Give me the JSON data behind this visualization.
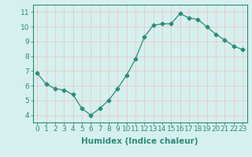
{
  "xlabel": "Humidex (Indice chaleur)",
  "x": [
    0,
    1,
    2,
    3,
    4,
    5,
    6,
    7,
    8,
    9,
    10,
    11,
    12,
    13,
    14,
    15,
    16,
    17,
    18,
    19,
    20,
    21,
    22,
    23
  ],
  "y": [
    6.85,
    6.1,
    5.8,
    5.7,
    5.4,
    4.45,
    4.0,
    4.45,
    5.0,
    5.8,
    6.7,
    7.8,
    9.3,
    10.1,
    10.2,
    10.2,
    10.9,
    10.6,
    10.5,
    10.0,
    9.5,
    9.1,
    8.7,
    8.45
  ],
  "ylim": [
    3.5,
    11.5
  ],
  "xlim": [
    -0.5,
    23.5
  ],
  "yticks": [
    4,
    5,
    6,
    7,
    8,
    9,
    10,
    11
  ],
  "xticks": [
    0,
    1,
    2,
    3,
    4,
    5,
    6,
    7,
    8,
    9,
    10,
    11,
    12,
    13,
    14,
    15,
    16,
    17,
    18,
    19,
    20,
    21,
    22,
    23
  ],
  "line_color": "#2e8b7a",
  "marker": "D",
  "marker_size": 2.5,
  "bg_color": "#d6f0ee",
  "grid_color": "#e8c8c8",
  "tick_label_fontsize": 6.5,
  "xlabel_fontsize": 7.5
}
